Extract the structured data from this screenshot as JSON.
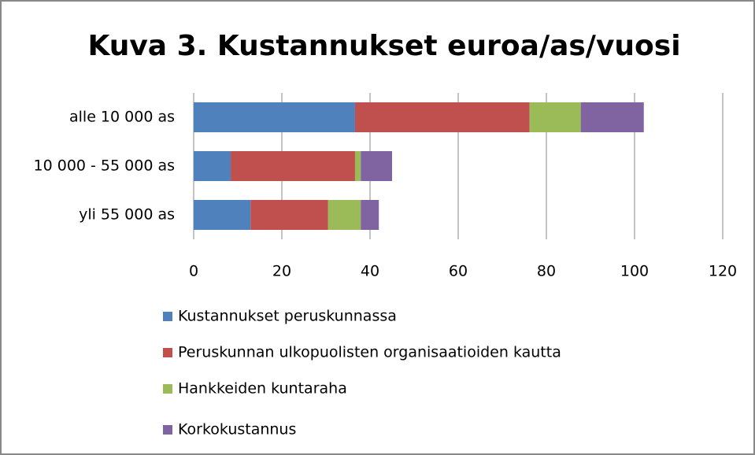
{
  "chart_data": {
    "type": "stacked-bar-horizontal",
    "title": "Kuva 3. Kustannukset euroa/as/vuosi",
    "categories": [
      "alle 10 000 as",
      "10 000 - 55 000 as",
      "yli 55 000 as"
    ],
    "series": [
      {
        "name": "Kustannukset peruskunnassa",
        "color": "#4f81bd",
        "values": [
          36.6,
          8.4,
          12.9
        ]
      },
      {
        "name": "Peruskunnan ulkopuolisten organisaatioiden kautta",
        "color": "#c0504d",
        "values": [
          39.6,
          28.2,
          17.6
        ]
      },
      {
        "name": "Hankkeiden kuntaraha",
        "color": "#9bbb59",
        "values": [
          11.6,
          1.3,
          7.4
        ]
      },
      {
        "name": "Korkokustannus",
        "color": "#8064a2",
        "values": [
          14.3,
          7.1,
          4.1
        ]
      }
    ],
    "xlim": [
      0,
      120
    ],
    "xticks": [
      0,
      20,
      40,
      60,
      80,
      100,
      120
    ],
    "grid": true,
    "legend": "bottom"
  }
}
